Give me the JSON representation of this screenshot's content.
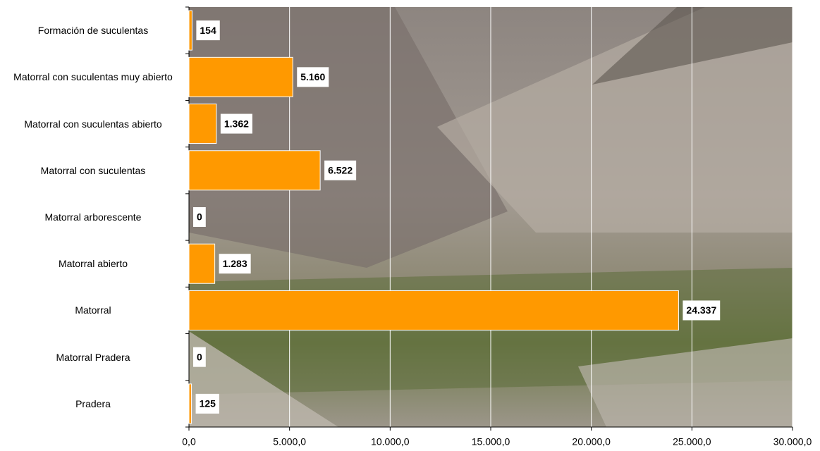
{
  "chart_data": {
    "type": "barh",
    "categories": [
      "Formación de suculentas",
      "Matorral con suculentas muy abierto",
      "Matorral con suculentas abierto",
      "Matorral con suculentas",
      "Matorral arborescente",
      "Matorral abierto",
      "Matorral",
      "Matorral Pradera",
      "Pradera"
    ],
    "values": [
      154,
      5160,
      1362,
      6522,
      0,
      1283,
      24337,
      0,
      125
    ],
    "value_labels": [
      "154",
      "5.160",
      "1.362",
      "6.522",
      "0",
      "1.283",
      "24.337",
      "0",
      "125"
    ],
    "color": "#ff9900",
    "xlim": [
      0,
      30000
    ],
    "xticks": [
      {
        "value": 0,
        "label": "0,0"
      },
      {
        "value": 5000,
        "label": "5.000,0"
      },
      {
        "value": 10000,
        "label": "10.000,0"
      },
      {
        "value": 15000,
        "label": "15.000,0"
      },
      {
        "value": 20000,
        "label": "20.000,0"
      },
      {
        "value": 25000,
        "label": "25.000,0"
      },
      {
        "value": 30000,
        "label": "30.000,0"
      }
    ],
    "grid": true
  }
}
